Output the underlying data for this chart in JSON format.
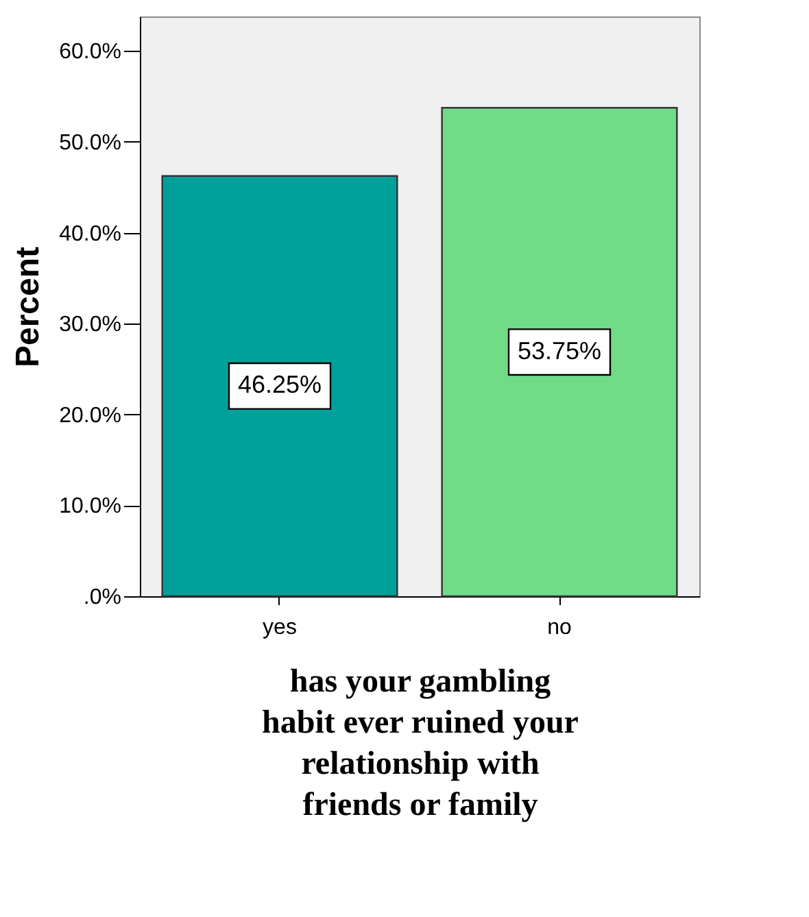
{
  "chart_data": {
    "type": "bar",
    "xlabel": "has your gambling habit ever ruined your relationship with friends or family",
    "ylabel": "Percent",
    "categories": [
      "yes",
      "no"
    ],
    "values": [
      46.25,
      53.75
    ],
    "colors": [
      "#00a09a",
      "#70dc88"
    ],
    "value_labels": [
      "46.25%",
      "53.75%"
    ],
    "ylim": [
      0,
      63.8
    ],
    "yticks": [
      {
        "value": 0,
        "label": ".0%"
      },
      {
        "value": 10,
        "label": "10.0%"
      },
      {
        "value": 20,
        "label": "20.0%"
      },
      {
        "value": 30,
        "label": "30.0%"
      },
      {
        "value": 40,
        "label": "40.0%"
      },
      {
        "value": 50,
        "label": "50.0%"
      },
      {
        "value": 60,
        "label": "60.0%"
      }
    ],
    "grid": false,
    "legend": false
  }
}
